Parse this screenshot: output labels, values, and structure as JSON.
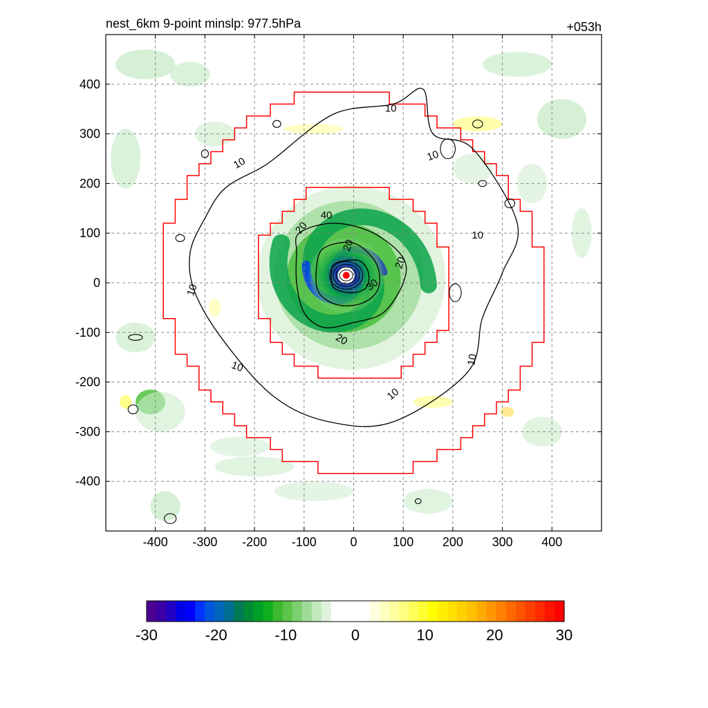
{
  "title_left": "nest_6km  9-point minslp: 977.5hPa",
  "title_right": "+053h",
  "chart_data": {
    "type": "heatmap",
    "title": "nest_6km  9-point minslp: 977.5hPa",
    "forecast_hour_label": "+053h",
    "xlim": [
      -500,
      500
    ],
    "ylim": [
      -500,
      500
    ],
    "x_ticks": [
      "-400",
      "-300",
      "-200",
      "-100",
      "0",
      "100",
      "200",
      "300",
      "400"
    ],
    "y_ticks": [
      "400",
      "300",
      "200",
      "100",
      "0",
      "-100",
      "-200",
      "-300",
      "-400"
    ],
    "grid": true,
    "storm_center": [
      -15,
      15
    ],
    "storm_center_color": "#ff0000",
    "contour_line_color": "#000000",
    "contour_labels": [
      "10",
      "10",
      "10",
      "10",
      "10",
      "10",
      "10",
      "10",
      "20",
      "20",
      "20",
      "20",
      "30",
      "40",
      "10",
      "10",
      "10"
    ],
    "contour_levels": [
      10,
      20,
      30,
      40
    ],
    "contour_samples": {
      "10": [
        [
          -190,
          230
        ],
        [
          -160,
          250
        ],
        [
          -40,
          340
        ],
        [
          80,
          360
        ],
        [
          140,
          390
        ],
        [
          160,
          300
        ],
        [
          240,
          270
        ],
        [
          330,
          120
        ],
        [
          300,
          20
        ],
        [
          260,
          -70
        ],
        [
          230,
          -180
        ],
        [
          80,
          -280
        ],
        [
          -50,
          -280
        ],
        [
          -160,
          -230
        ],
        [
          -260,
          -120
        ],
        [
          -320,
          -20
        ],
        [
          -330,
          60
        ],
        [
          -300,
          130
        ],
        [
          -260,
          190
        ]
      ],
      "20": [
        [
          -110,
          100
        ],
        [
          -40,
          120
        ],
        [
          40,
          100
        ],
        [
          100,
          50
        ],
        [
          100,
          0
        ],
        [
          60,
          -60
        ],
        [
          0,
          -80
        ],
        [
          -60,
          -90
        ],
        [
          -100,
          -60
        ],
        [
          -115,
          0
        ],
        [
          -115,
          60
        ]
      ],
      "30": [
        [
          -60,
          70
        ],
        [
          0,
          80
        ],
        [
          45,
          40
        ],
        [
          50,
          -10
        ],
        [
          20,
          -40
        ],
        [
          -30,
          -45
        ],
        [
          -70,
          -20
        ],
        [
          -75,
          30
        ]
      ],
      "40": [
        [
          -35,
          40
        ],
        [
          10,
          45
        ],
        [
          30,
          20
        ],
        [
          25,
          -10
        ],
        [
          -5,
          -20
        ],
        [
          -40,
          -10
        ],
        [
          -45,
          20
        ]
      ]
    },
    "nest_boundaries": [
      {
        "name": "outer",
        "radius": 380,
        "color": "#ff0000"
      },
      {
        "name": "inner",
        "radius": 200,
        "color": "#ff0000"
      }
    ],
    "colorbar": {
      "min": -30,
      "max": 30,
      "ticks": [
        "-30",
        "-20",
        "-10",
        "0",
        "10",
        "20",
        "30"
      ],
      "colors": [
        "#4b0092",
        "#3a00a6",
        "#2200c4",
        "#0000e6",
        "#0000ff",
        "#0033ff",
        "#0055dd",
        "#0066bb",
        "#006f8f",
        "#007a55",
        "#008a33",
        "#00a028",
        "#11ae1e",
        "#3bba2f",
        "#5cc44a",
        "#7ccf70",
        "#9edb98",
        "#bfe8bd",
        "#dff3dc",
        "#ffffff",
        "#ffffff",
        "#ffffff",
        "#ffffff",
        "#ffffe0",
        "#ffffc0",
        "#ffffa0",
        "#ffff80",
        "#ffff5a",
        "#ffff33",
        "#ffff00",
        "#ffee00",
        "#ffe000",
        "#ffd000",
        "#ffc000",
        "#ffaa00",
        "#ff9600",
        "#ff8000",
        "#ff6a00",
        "#ff5500",
        "#ff3f00",
        "#ff2a00",
        "#ff1400",
        "#ff0000"
      ]
    }
  }
}
